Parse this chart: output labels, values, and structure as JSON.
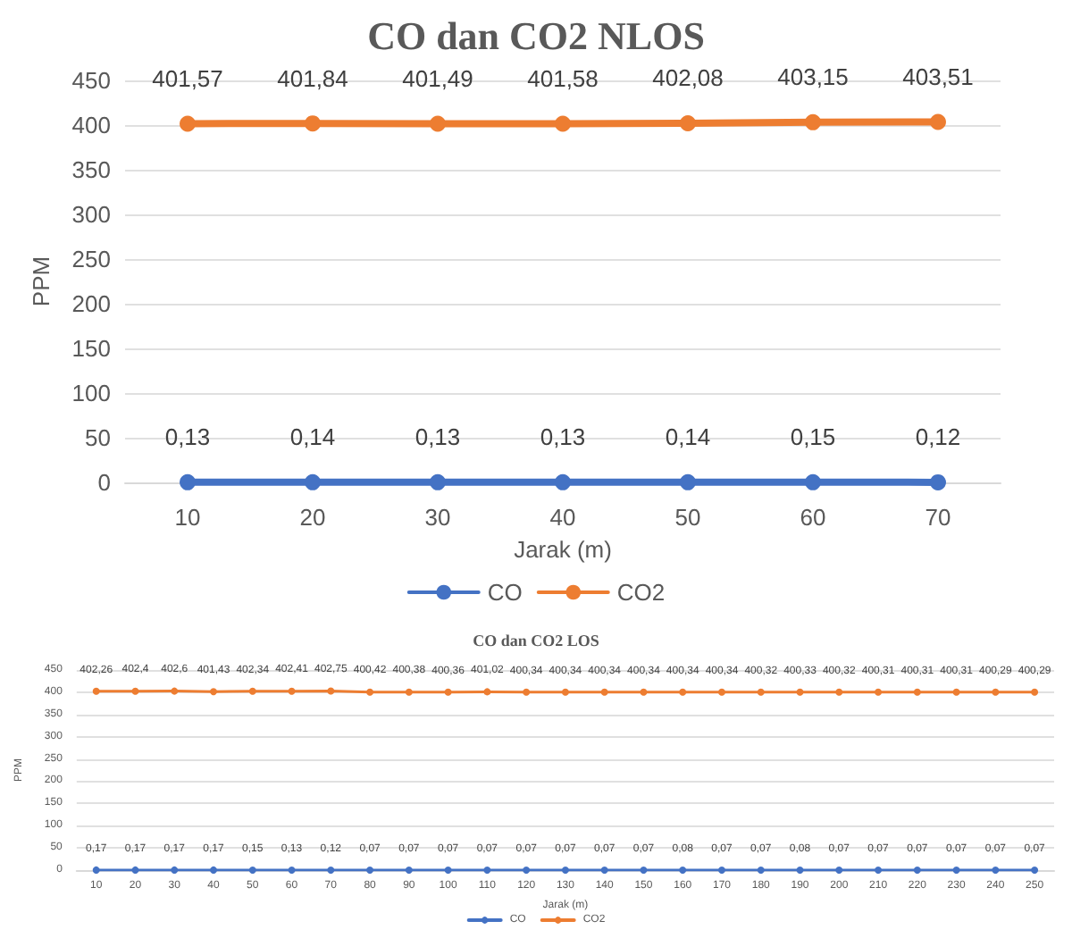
{
  "chart_data": [
    {
      "type": "line",
      "title": "CO dan CO2 NLOS",
      "xlabel": "Jarak (m)",
      "ylabel": "PPM",
      "categories": [
        "10",
        "20",
        "30",
        "40",
        "50",
        "60",
        "70"
      ],
      "ylim": [
        0,
        450
      ],
      "yticks": [
        0,
        50,
        100,
        150,
        200,
        250,
        300,
        350,
        400,
        450
      ],
      "grid": "y",
      "legend": "bottom",
      "marker": "circle",
      "line_style": "solid",
      "series": [
        {
          "name": "CO",
          "color": "#4472c4",
          "values": [
            0.13,
            0.14,
            0.13,
            0.13,
            0.14,
            0.15,
            0.12
          ],
          "value_labels": [
            "0,13",
            "0,14",
            "0,13",
            "0,13",
            "0,14",
            "0,15",
            "0,12"
          ]
        },
        {
          "name": "CO2",
          "color": "#ed7d31",
          "values": [
            401.57,
            401.84,
            401.49,
            401.58,
            402.08,
            403.15,
            403.51
          ],
          "value_labels": [
            "401,57",
            "401,84",
            "401,49",
            "401,58",
            "402,08",
            "403,15",
            "403,51"
          ]
        }
      ]
    },
    {
      "type": "line",
      "title": "CO dan CO2 LOS",
      "xlabel": "Jarak (m)",
      "ylabel": "PPM",
      "categories": [
        "10",
        "20",
        "30",
        "40",
        "50",
        "60",
        "70",
        "80",
        "90",
        "100",
        "110",
        "120",
        "130",
        "140",
        "150",
        "160",
        "170",
        "180",
        "190",
        "200",
        "210",
        "220",
        "230",
        "240",
        "250"
      ],
      "ylim": [
        0,
        450
      ],
      "yticks": [
        0,
        50,
        100,
        150,
        200,
        250,
        300,
        350,
        400,
        450
      ],
      "grid": "y",
      "legend": "bottom",
      "marker": "circle",
      "line_style": "solid",
      "series": [
        {
          "name": "CO",
          "color": "#4472c4",
          "values": [
            0.17,
            0.17,
            0.17,
            0.17,
            0.15,
            0.13,
            0.12,
            0.07,
            0.07,
            0.07,
            0.07,
            0.07,
            0.07,
            0.07,
            0.07,
            0.08,
            0.07,
            0.07,
            0.08,
            0.07,
            0.07,
            0.07,
            0.07,
            0.07,
            0.07
          ],
          "value_labels": [
            "0,17",
            "0,17",
            "0,17",
            "0,17",
            "0,15",
            "0,13",
            "0,12",
            "0,07",
            "0,07",
            "0,07",
            "0,07",
            "0,07",
            "0,07",
            "0,07",
            "0,07",
            "0,08",
            "0,07",
            "0,07",
            "0,08",
            "0,07",
            "0,07",
            "0,07",
            "0,07",
            "0,07",
            "0,07"
          ]
        },
        {
          "name": "CO2",
          "color": "#ed7d31",
          "values": [
            402.26,
            402.4,
            402.6,
            401.43,
            402.34,
            402.41,
            402.75,
            400.42,
            400.38,
            400.36,
            401.02,
            400.34,
            400.34,
            400.34,
            400.34,
            400.34,
            400.34,
            400.32,
            400.33,
            400.32,
            400.31,
            400.31,
            400.31,
            400.29,
            400.29
          ],
          "value_labels": [
            "402,26",
            "402,4",
            "402,6",
            "401,43",
            "402,34",
            "402,41",
            "402,75",
            "400,42",
            "400,38",
            "400,36",
            "401,02",
            "400,34",
            "400,34",
            "400,34",
            "400,34",
            "400,34",
            "400,34",
            "400,32",
            "400,33",
            "400,32",
            "400,31",
            "400,31",
            "400,31",
            "400,29",
            "400,29"
          ]
        }
      ]
    }
  ]
}
